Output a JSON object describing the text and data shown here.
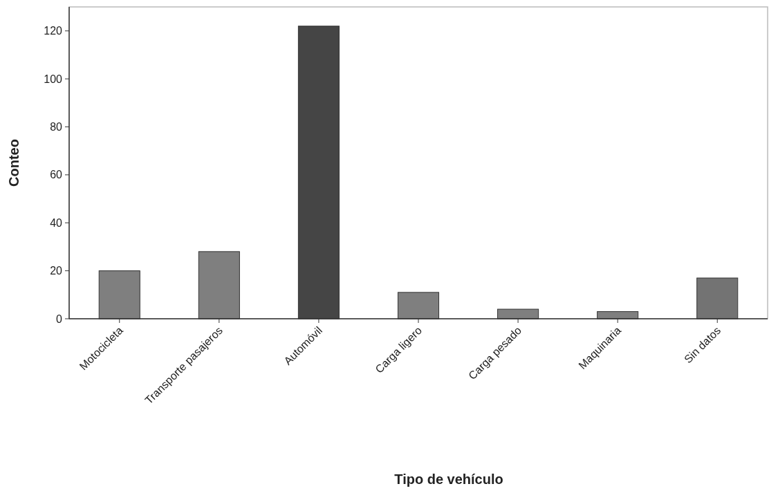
{
  "chart_data": {
    "type": "bar",
    "xlabel": "Tipo de vehículo",
    "ylabel": "Conteo",
    "categories": [
      "Motocicleta",
      "Transporte pasajeros",
      "Automóvil",
      "Carga ligero",
      "Carga pesado",
      "Maquinaria",
      "Sin datos"
    ],
    "values": [
      20,
      28,
      122,
      11,
      4,
      3,
      17
    ],
    "colors": [
      "#7f7f7f",
      "#7f7f7f",
      "#454545",
      "#7f7f7f",
      "#7f7f7f",
      "#7f7f7f",
      "#737373"
    ],
    "ylim": [
      0,
      130
    ],
    "yticks": [
      0,
      20,
      40,
      60,
      80,
      100,
      120
    ],
    "grid": false
  }
}
